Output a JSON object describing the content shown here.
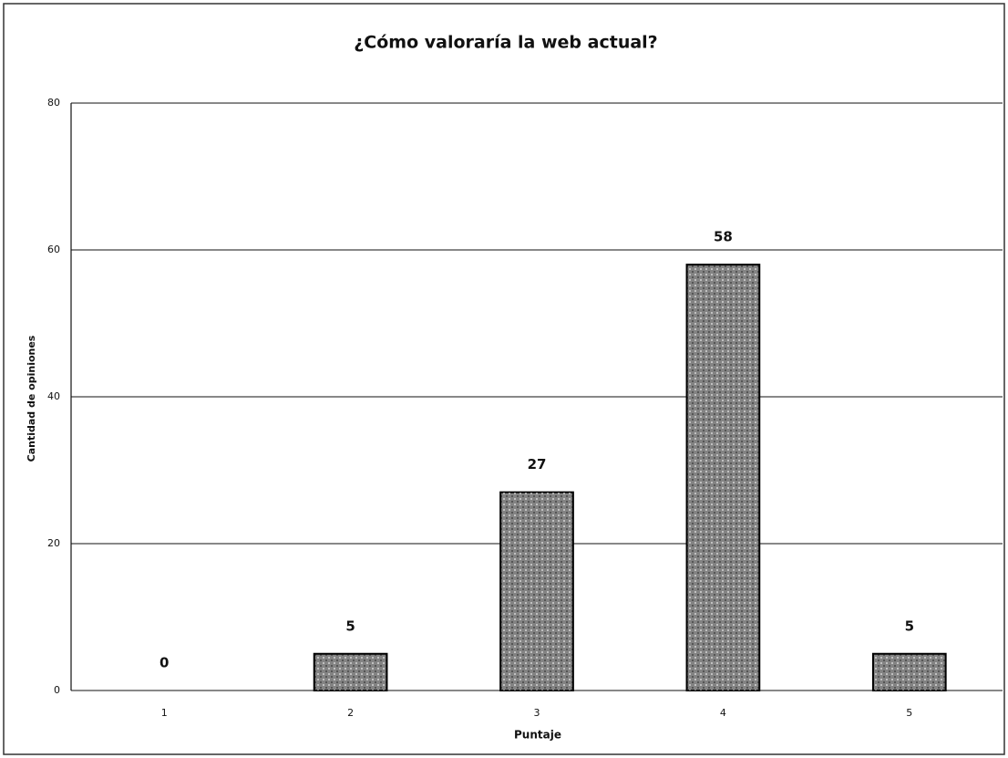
{
  "chart_data": {
    "type": "bar",
    "title": "¿Cómo valoraría la web actual?",
    "x_label": "Puntaje",
    "y_label": "Cantidad de opiniones",
    "categories": [
      "1",
      "2",
      "3",
      "4",
      "5"
    ],
    "values": [
      0,
      5,
      27,
      58,
      5
    ],
    "color": "#9a9a9a",
    "ylim": [
      0,
      80
    ],
    "yticks": [
      0,
      20,
      40,
      60,
      80
    ],
    "grid": true
  }
}
